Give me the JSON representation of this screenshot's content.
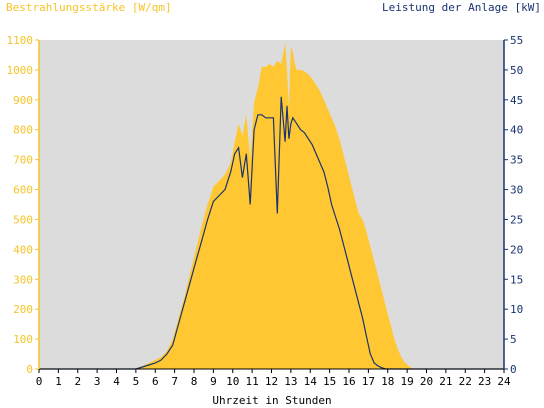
{
  "chart_data": {
    "type": "area",
    "ylabel_left": "Bestrahlungsstärke [W/qm]",
    "ylabel_right": "Leistung der Anlage [kW]",
    "xlabel": "Uhrzeit in Stunden",
    "xlim": [
      0,
      24
    ],
    "ylim_left": [
      0,
      1100
    ],
    "ylim_right": [
      0,
      55
    ],
    "xticks": [
      0,
      1,
      2,
      3,
      4,
      5,
      6,
      7,
      8,
      9,
      10,
      11,
      12,
      13,
      14,
      15,
      16,
      17,
      18,
      19,
      20,
      21,
      22,
      23,
      24
    ],
    "yticks_left": [
      0,
      100,
      200,
      300,
      400,
      500,
      600,
      700,
      800,
      900,
      1000,
      1100
    ],
    "yticks_right": [
      0,
      5,
      10,
      15,
      20,
      25,
      30,
      35,
      40,
      45,
      50,
      55
    ],
    "grid": false,
    "colors": {
      "plot_bg": "#dcdcdc",
      "irradiance": "#ffc832",
      "power": "#1a3470",
      "left_axis": "#f5c428",
      "right_axis": "#1a3470"
    },
    "series": [
      {
        "name": "Bestrahlungsstärke [W/qm]",
        "axis": "left",
        "style": "area",
        "x": [
          0,
          5,
          5.5,
          6,
          6.3,
          6.6,
          6.9,
          7.2,
          7.5,
          7.8,
          8.1,
          8.4,
          8.7,
          9,
          9.3,
          9.6,
          9.9,
          10.1,
          10.3,
          10.5,
          10.7,
          10.9,
          11.1,
          11.3,
          11.5,
          11.7,
          11.9,
          12.1,
          12.3,
          12.5,
          12.7,
          12.8,
          12.9,
          13,
          13.1,
          13.2,
          13.3,
          13.5,
          13.7,
          13.9,
          14.1,
          14.3,
          14.5,
          14.7,
          14.9,
          15.1,
          15.3,
          15.5,
          15.7,
          15.9,
          16.1,
          16.3,
          16.5,
          16.7,
          16.9,
          17.1,
          17.3,
          17.5,
          17.7,
          17.9,
          18.1,
          18.3,
          18.5,
          18.7,
          18.9,
          19.1,
          19.3,
          19.5,
          19.7,
          19.9,
          20.1,
          20.3,
          24
        ],
        "y": [
          0,
          0,
          15,
          30,
          40,
          60,
          100,
          170,
          240,
          320,
          400,
          480,
          550,
          610,
          630,
          650,
          690,
          760,
          820,
          780,
          850,
          700,
          890,
          940,
          1010,
          1010,
          1020,
          1010,
          1030,
          1020,
          1090,
          1000,
          870,
          1080,
          1060,
          1020,
          1000,
          1000,
          995,
          985,
          970,
          950,
          930,
          900,
          870,
          840,
          810,
          770,
          720,
          670,
          620,
          570,
          520,
          500,
          460,
          410,
          360,
          310,
          260,
          210,
          160,
          110,
          70,
          40,
          20,
          10,
          0,
          0,
          0,
          0,
          0,
          0,
          0
        ]
      },
      {
        "name": "Leistung der Anlage [kW]",
        "axis": "right",
        "style": "line",
        "x": [
          0,
          5,
          5.5,
          6,
          6.3,
          6.6,
          6.9,
          7.2,
          7.5,
          7.8,
          8.1,
          8.4,
          8.7,
          9,
          9.3,
          9.6,
          9.9,
          10.1,
          10.3,
          10.5,
          10.7,
          10.9,
          11.1,
          11.3,
          11.5,
          11.7,
          11.9,
          12.1,
          12.3,
          12.5,
          12.7,
          12.8,
          12.9,
          13,
          13.1,
          13.2,
          13.3,
          13.5,
          13.7,
          13.9,
          14.1,
          14.3,
          14.5,
          14.7,
          14.9,
          15.1,
          15.3,
          15.5,
          15.7,
          15.9,
          16.1,
          16.3,
          16.5,
          16.7,
          16.9,
          17.1,
          17.3,
          17.5,
          17.7,
          17.9,
          18.1,
          18.3,
          18.5,
          18.7,
          18.9,
          19.1,
          19.3,
          19.5,
          19.7,
          19.9,
          20.1,
          20.3,
          24
        ],
        "y": [
          0,
          0,
          0.5,
          1,
          1.5,
          2.5,
          4,
          7.5,
          11,
          14.5,
          18,
          21.5,
          25,
          28,
          29,
          30,
          33,
          36,
          37,
          32,
          36,
          27.5,
          40,
          42.5,
          42.5,
          42,
          42,
          42,
          26,
          45.5,
          38,
          44,
          38.5,
          41,
          42,
          41.5,
          41,
          40,
          39.5,
          38.5,
          37.5,
          36,
          34.5,
          33,
          30.5,
          27.5,
          25.5,
          23.5,
          21,
          18.5,
          16,
          13.5,
          11,
          8.5,
          5.5,
          2.5,
          1,
          0.5,
          0.2,
          0,
          0,
          0,
          0,
          0,
          0,
          0,
          0,
          0,
          0,
          0,
          0,
          0,
          0
        ]
      }
    ]
  }
}
